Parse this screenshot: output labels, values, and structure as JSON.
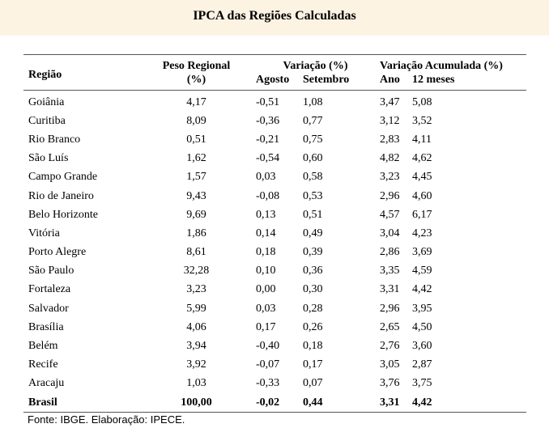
{
  "title": "IPCA das Regiões Calculadas",
  "headers": {
    "regiao": "Região",
    "peso_line1": "Peso Regional",
    "peso_line2": "(%)",
    "variacao": "Variação (%)",
    "agosto": "Agosto",
    "setembro": "Setembro",
    "acumulada": "Variação Acumulada (%)",
    "ano": "Ano",
    "meses12": "12 meses"
  },
  "rows": [
    [
      "Goiânia",
      "4,17",
      "-0,51",
      "1,08",
      "3,47",
      "5,08"
    ],
    [
      "Curitiba",
      "8,09",
      "-0,36",
      "0,77",
      "3,12",
      "3,52"
    ],
    [
      "Rio Branco",
      "0,51",
      "-0,21",
      "0,75",
      "2,83",
      "4,11"
    ],
    [
      "São Luís",
      "1,62",
      "-0,54",
      "0,60",
      "4,82",
      "4,62"
    ],
    [
      "Campo Grande",
      "1,57",
      "0,03",
      "0,58",
      "3,23",
      "4,45"
    ],
    [
      "Rio de Janeiro",
      "9,43",
      "-0,08",
      "0,53",
      "2,96",
      "4,60"
    ],
    [
      "Belo Horizonte",
      "9,69",
      "0,13",
      "0,51",
      "4,57",
      "6,17"
    ],
    [
      "Vitória",
      "1,86",
      "0,14",
      "0,49",
      "3,04",
      "4,23"
    ],
    [
      "Porto Alegre",
      "8,61",
      "0,18",
      "0,39",
      "2,86",
      "3,69"
    ],
    [
      "São Paulo",
      "32,28",
      "0,10",
      "0,36",
      "3,35",
      "4,59"
    ],
    [
      "Fortaleza",
      "3,23",
      "0,00",
      "0,30",
      "3,31",
      "4,42"
    ],
    [
      "Salvador",
      "5,99",
      "0,03",
      "0,28",
      "2,96",
      "3,95"
    ],
    [
      "Brasília",
      "4,06",
      "0,17",
      "0,26",
      "2,65",
      "4,50"
    ],
    [
      "Belém",
      "3,94",
      "-0,40",
      "0,18",
      "2,76",
      "3,60"
    ],
    [
      "Recife",
      "3,92",
      "-0,07",
      "0,17",
      "3,05",
      "2,87"
    ],
    [
      "Aracaju",
      "1,03",
      "-0,33",
      "0,07",
      "3,76",
      "3,75"
    ],
    [
      "Brasil",
      "100,00",
      "-0,02",
      "0,44",
      "3,31",
      "4,42"
    ]
  ],
  "source": "Fonte: IBGE. Elaboração: IPECE."
}
